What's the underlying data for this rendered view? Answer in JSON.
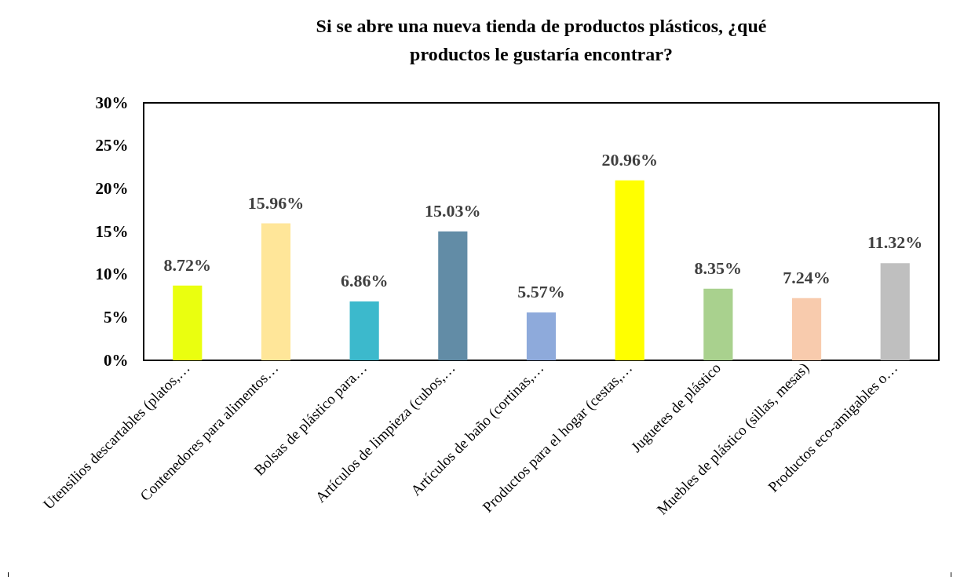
{
  "chart_data": {
    "type": "bar",
    "title": "Si se abre una nueva tienda de productos plásticos, ¿qué productos le gustaría encontrar?",
    "categories": [
      "Utensilios descartables (platos,…",
      "Contenedores para alimentos…",
      "Bolsas de plástico para…",
      "Artículos de limpieza (cubos,…",
      "Artículos de baño (cortinas,…",
      "Productos para el hogar (cestas,…",
      "Juguetes de plástico",
      "Muebles de plástico (sillas, mesas)",
      "Productos eco-amigables o…"
    ],
    "values": [
      8.72,
      15.96,
      6.86,
      15.03,
      5.57,
      20.96,
      8.35,
      7.24,
      11.32
    ],
    "colors": [
      "#eaff0f",
      "#ffe699",
      "#3cb9cc",
      "#628ca6",
      "#8eaadb",
      "#ffff00",
      "#a9d18e",
      "#f8cbad",
      "#bfbfbf"
    ],
    "value_labels": [
      "8.72%",
      "15.96%",
      "6.86%",
      "15.03%",
      "5.57%",
      "20.96%",
      "8.35%",
      "7.24%",
      "11.32%"
    ],
    "ylim": [
      0,
      30
    ],
    "yticks": [
      {
        "value": 0,
        "label": "0%"
      },
      {
        "value": 5,
        "label": "5%"
      },
      {
        "value": 10,
        "label": "10%"
      },
      {
        "value": 15,
        "label": "15%"
      },
      {
        "value": 20,
        "label": "20%"
      },
      {
        "value": 25,
        "label": "25%"
      },
      {
        "value": 30,
        "label": "30%"
      }
    ],
    "grid": false,
    "legend": false
  }
}
